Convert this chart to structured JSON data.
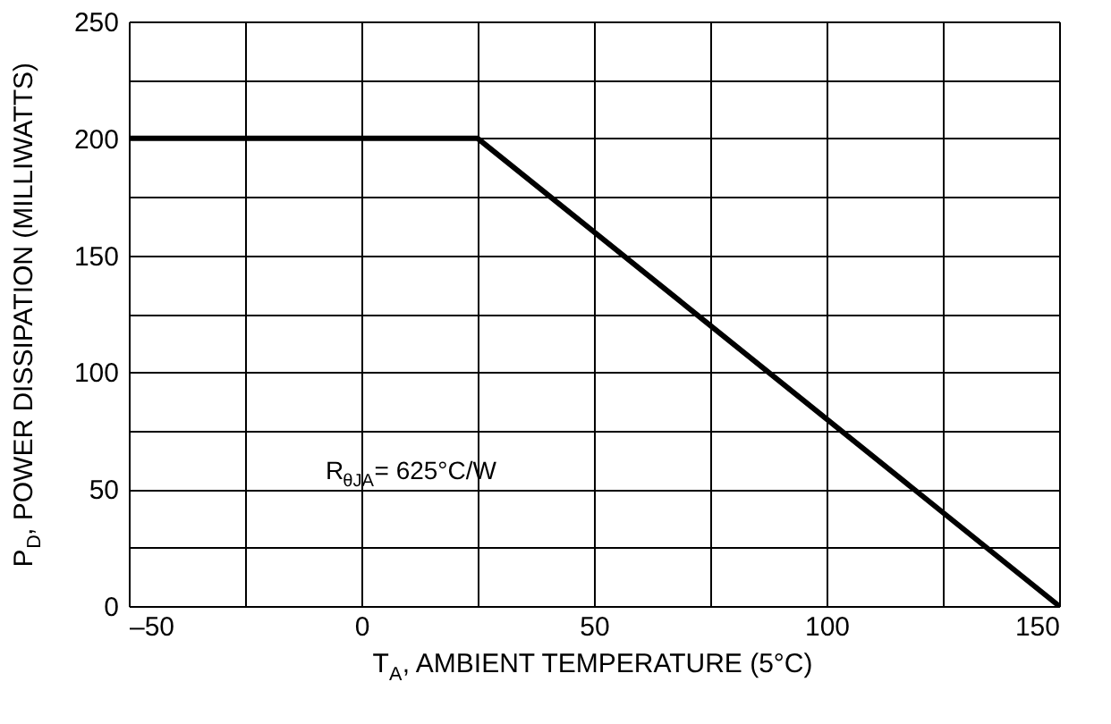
{
  "chart_data": {
    "type": "line",
    "x": [
      -50,
      25,
      150
    ],
    "series": [
      {
        "color": "#000000",
        "values": [
          200,
          200,
          0
        ]
      }
    ],
    "xlabel": "T$_{A}$, AMBIENT TEMPERATURE (5°C)",
    "ylabel": "P$_{D}$, POWER DISSIPATION (MILLIWATTS)",
    "annotations": [
      "R$_{θJA}$= 625°C/W"
    ],
    "xlim": [
      -50,
      150
    ],
    "xticks": [
      {
        "value": -50,
        "label": "–50"
      },
      {
        "value": -25,
        "label": null
      },
      0,
      {
        "value": 25,
        "label": null
      },
      50,
      {
        "value": 75,
        "label": null
      },
      100,
      {
        "value": 125,
        "label": null
      },
      150
    ],
    "ylim": [
      0,
      250
    ],
    "yticks": [
      0,
      {
        "value": 25,
        "label": null
      },
      50,
      {
        "value": 75,
        "label": null
      },
      100,
      {
        "value": 125,
        "label": null
      },
      150,
      {
        "value": 175,
        "label": null
      },
      200,
      {
        "value": 225,
        "label": null
      },
      250
    ],
    "grid": true,
    "legend": false,
    "marker": "none",
    "line_style": "solid"
  }
}
